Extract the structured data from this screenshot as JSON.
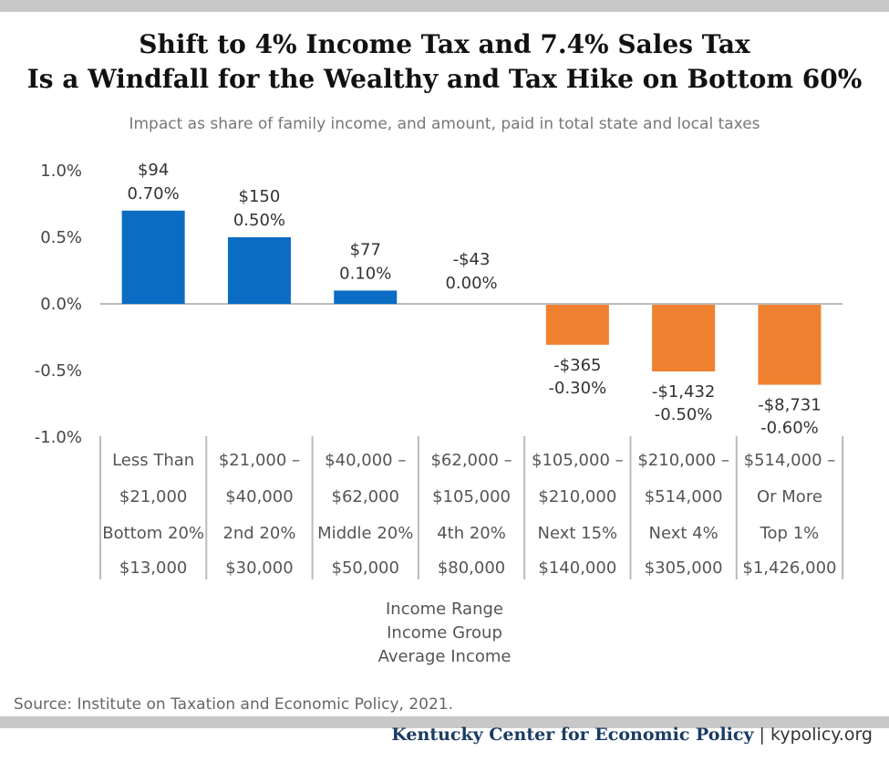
{
  "title_line1": "Shift to 4% Income Tax and 7.4% Sales Tax",
  "title_line2": "Is a Windfall for the Wealthy and Tax Hike on Bottom 60%",
  "subtitle": "Impact as share of family income, and amount, paid in total state and local taxes",
  "source": "Source: Institute on Taxation and Economic Policy, 2021.",
  "footer": {
    "org": "Kentucky Center for Economic Policy",
    "separator": " | ",
    "site": "kypolicy.org"
  },
  "colors": {
    "positive": "#0a6cc2",
    "negative": "#ef8030"
  },
  "chart_data": {
    "type": "bar",
    "yticks": [
      "1.0%",
      "0.5%",
      "0.0%",
      "-0.5%",
      "-1.0%"
    ],
    "ylim": [
      -1.0,
      1.0
    ],
    "xlabel_lines": [
      "Income Range",
      "Income Group",
      "Average Income"
    ],
    "categories": [
      {
        "range_line1": "Less Than",
        "range_line2": "$21,000",
        "group": "Bottom 20%",
        "avg": "$13,000",
        "value": 0.7,
        "amount_label": "$94",
        "pct_label": "0.70%"
      },
      {
        "range_line1": "$21,000 –",
        "range_line2": "$40,000",
        "group": "2nd 20%",
        "avg": "$30,000",
        "value": 0.5,
        "amount_label": "$150",
        "pct_label": "0.50%"
      },
      {
        "range_line1": "$40,000 –",
        "range_line2": "$62,000",
        "group": "Middle 20%",
        "avg": "$50,000",
        "value": 0.1,
        "amount_label": "$77",
        "pct_label": "0.10%"
      },
      {
        "range_line1": "$62,000 –",
        "range_line2": "$105,000",
        "group": "4th 20%",
        "avg": "$80,000",
        "value": 0.0,
        "amount_label": "-$43",
        "pct_label": "0.00%"
      },
      {
        "range_line1": "$105,000 –",
        "range_line2": "$210,000",
        "group": "Next 15%",
        "avg": "$140,000",
        "value": -0.3,
        "amount_label": "-$365",
        "pct_label": "-0.30%"
      },
      {
        "range_line1": "$210,000 –",
        "range_line2": "$514,000",
        "group": "Next 4%",
        "avg": "$305,000",
        "value": -0.5,
        "amount_label": "-$1,432",
        "pct_label": "-0.50%"
      },
      {
        "range_line1": "$514,000 –",
        "range_line2": "Or More",
        "group": "Top 1%",
        "avg": "$1,426,000",
        "value": -0.6,
        "amount_label": "-$8,731",
        "pct_label": "-0.60%"
      }
    ]
  }
}
